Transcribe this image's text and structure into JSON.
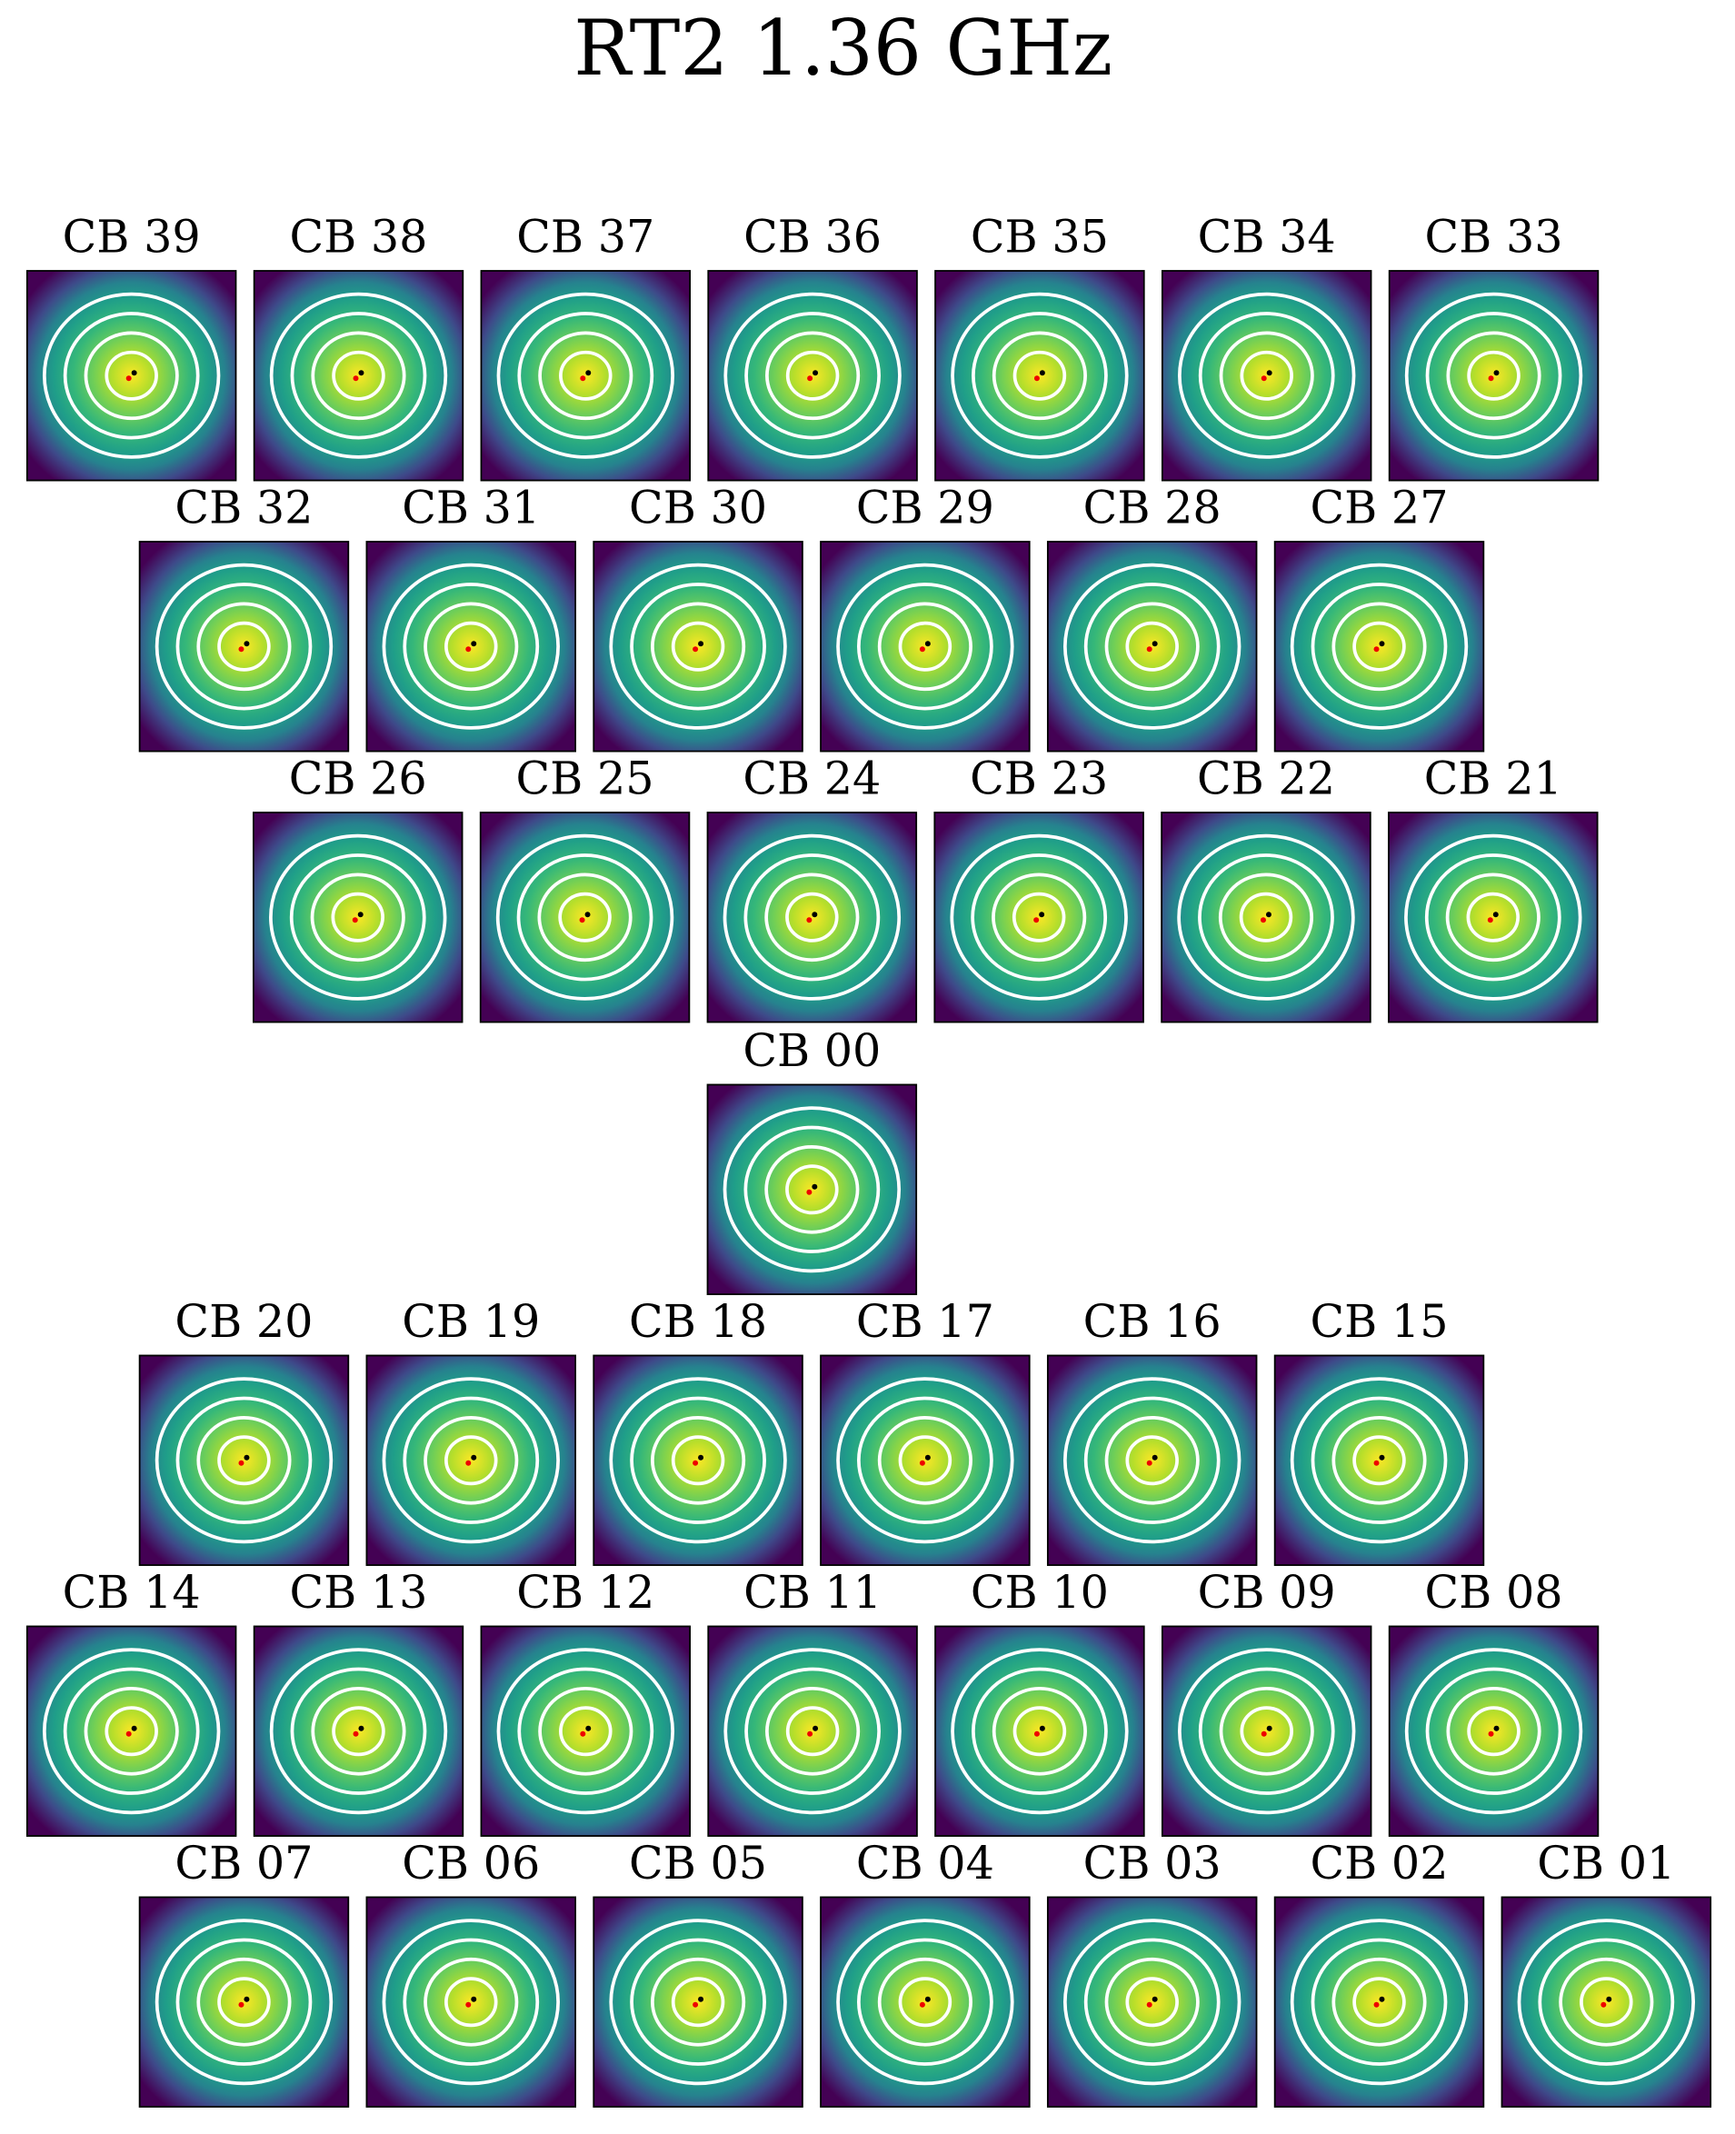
{
  "title": "RT2 1.36 GHz",
  "rows": [
    [
      "CB 39",
      "CB 38",
      "CB 37",
      "CB 36",
      "CB 35",
      "CB 34",
      "CB 33"
    ],
    [
      "CB 32",
      "CB 31",
      "CB 30",
      "CB 29",
      "CB 28",
      "CB 27"
    ],
    [
      "CB 26",
      "CB 25",
      "CB 24",
      "CB 23",
      "CB 22",
      "CB 21"
    ],
    [
      "CB 00"
    ],
    [
      "CB 20",
      "CB 19",
      "CB 18",
      "CB 17",
      "CB 16",
      "CB 15"
    ],
    [
      "CB 14",
      "CB 13",
      "CB 12",
      "CB 11",
      "CB 10",
      "CB 09",
      "CB 08"
    ],
    [
      "CB 07",
      "CB 06",
      "CB 05",
      "CB 04",
      "CB 03",
      "CB 02",
      "CB 01"
    ]
  ]
}
